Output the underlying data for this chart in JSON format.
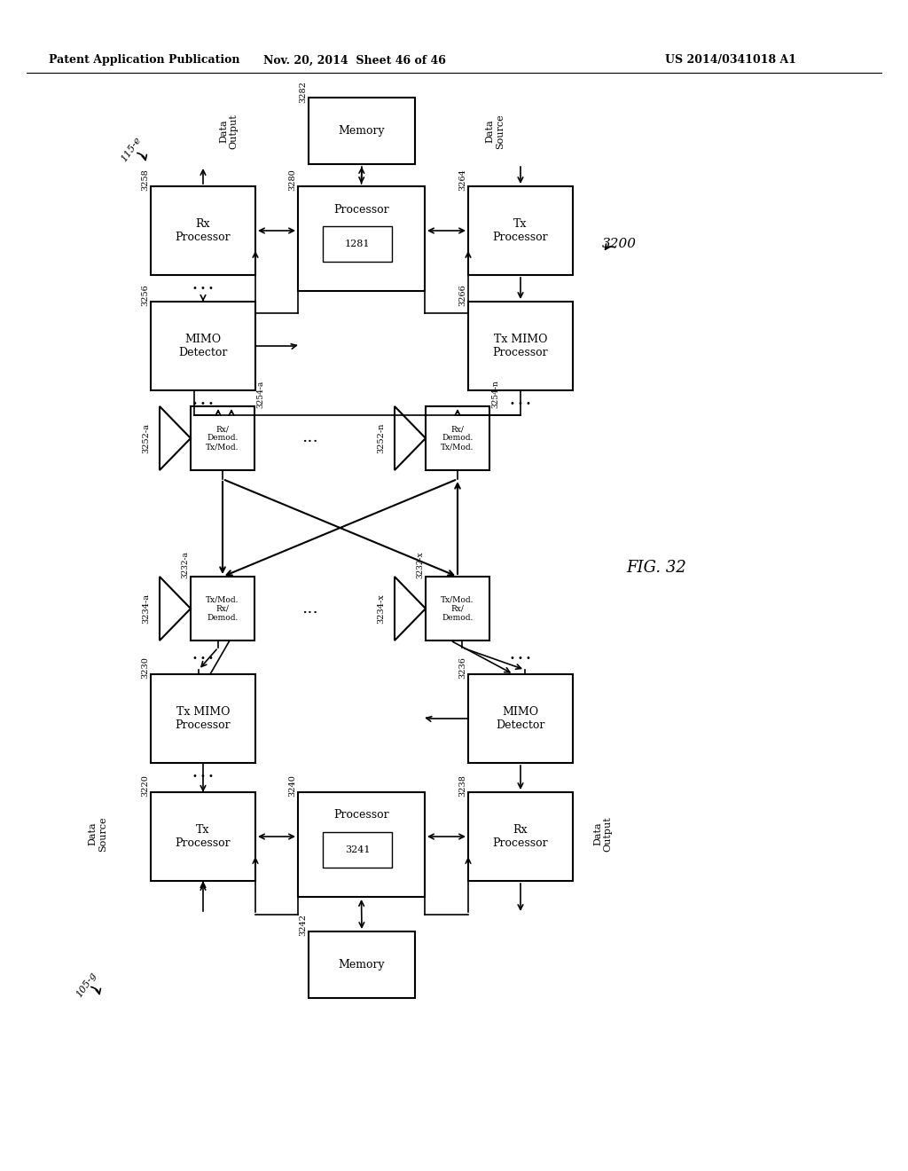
{
  "header_left": "Patent Application Publication",
  "header_mid": "Nov. 20, 2014  Sheet 46 of 46",
  "header_right": "US 2014/0341018 A1",
  "background_color": "#ffffff"
}
